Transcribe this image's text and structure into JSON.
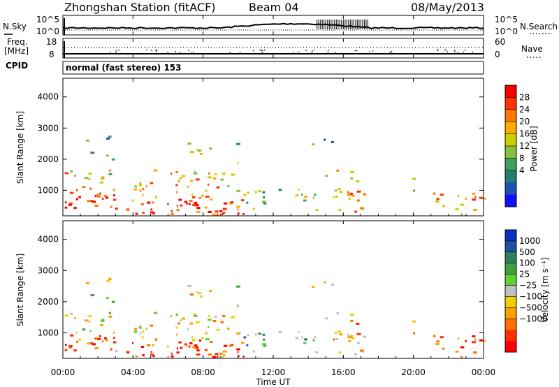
{
  "chart_data": {
    "type": "heatmap",
    "title": "Zhongshan Station (fitACF)",
    "beam": "Beam 04",
    "date": "08/May/2013",
    "xlabel": "Time UT",
    "x_ticks": [
      "00:00",
      "04:00",
      "08:00",
      "12:00",
      "16:00",
      "20:00",
      "00:00"
    ],
    "xlim_hours": [
      0,
      24
    ],
    "noise_panel": {
      "left_label": "N.Sky",
      "right_label": "N.Search",
      "left_ticks": [
        "10^5",
        "10^0"
      ],
      "right_ticks": [
        "10^5",
        "10^0"
      ]
    },
    "freq_panel": {
      "left_label_1": "Freq.",
      "left_label_2": "[MHz]",
      "left_ticks": [
        "18",
        "8"
      ],
      "right_label": "Nave",
      "right_ticks": [
        "60",
        "0"
      ]
    },
    "cpid": {
      "label": "CPID",
      "mode": "normal (fast stereo) 153"
    },
    "power_panel": {
      "ylabel": "Slant Range [km]",
      "y_ticks": [
        1000,
        2000,
        3000,
        4000
      ],
      "ylim": [
        180,
        4600
      ],
      "colorbar_label": "Power [dB]",
      "colorbar_ticks": [
        "28",
        "24",
        "20",
        "16",
        "12",
        "8",
        "4"
      ],
      "colorbar_colors": [
        "#ff0000",
        "#ff3300",
        "#ff7700",
        "#ffaa00",
        "#c8d000",
        "#88c040",
        "#40a060",
        "#208070",
        "#2050b0",
        "#1010ff"
      ]
    },
    "velocity_panel": {
      "ylabel": "Slant Range [km]",
      "y_ticks": [
        1000,
        2000,
        3000,
        4000
      ],
      "ylim": [
        180,
        4600
      ],
      "colorbar_label": "Velocity [m s⁻¹]",
      "colorbar_ticks": [
        "1000",
        "500",
        "100",
        "25",
        "−25",
        "−100",
        "−500",
        "−1000"
      ],
      "colorbar_colors": [
        "#1030c0",
        "#2050a0",
        "#308060",
        "#40a040",
        "#60d030",
        "#c0c0c0",
        "#f0d000",
        "#ffa000",
        "#ff7000",
        "#ff3000",
        "#ff0000"
      ]
    }
  }
}
